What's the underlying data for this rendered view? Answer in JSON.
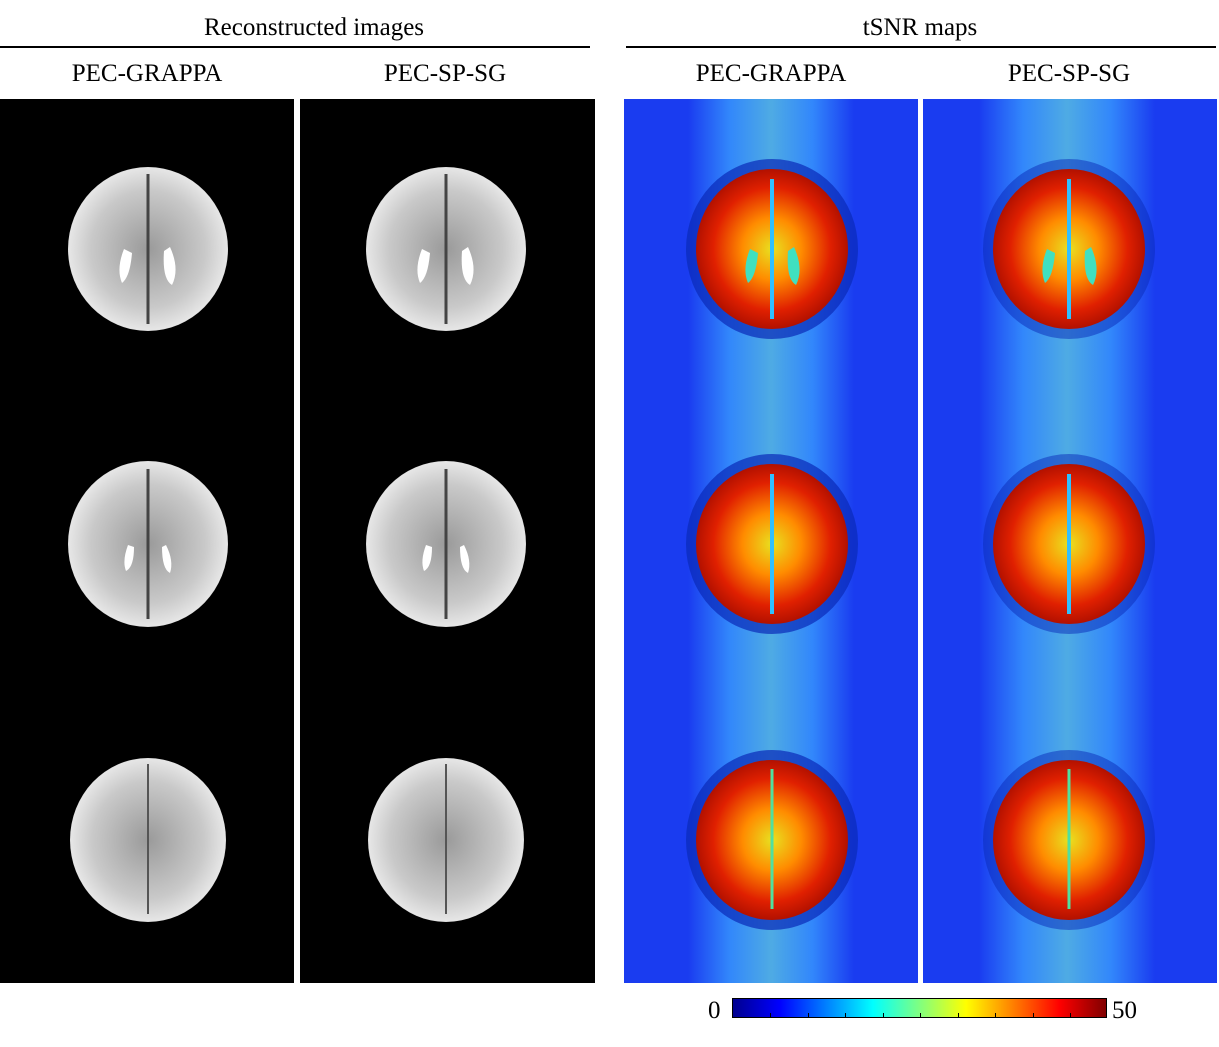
{
  "groups": {
    "reconstructed": {
      "title": "Reconstructed images"
    },
    "tsnr": {
      "title": "tSNR maps"
    }
  },
  "columns": [
    {
      "label": "PEC-GRAPPA"
    },
    {
      "label": "PEC-SP-SG"
    },
    {
      "label": "PEC-GRAPPA"
    },
    {
      "label": "PEC-SP-SG"
    }
  ],
  "colorbar": {
    "min_label": "0",
    "max_label": "50",
    "colormap": "jet"
  },
  "colors": {
    "panel_background": "#000000",
    "tsnr_background": "#1a3cf0"
  }
}
